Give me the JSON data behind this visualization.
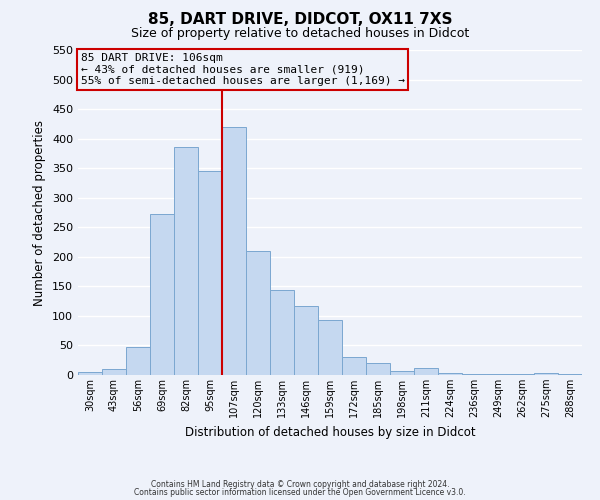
{
  "title": "85, DART DRIVE, DIDCOT, OX11 7XS",
  "subtitle": "Size of property relative to detached houses in Didcot",
  "xlabel": "Distribution of detached houses by size in Didcot",
  "ylabel": "Number of detached properties",
  "bar_labels": [
    "30sqm",
    "43sqm",
    "56sqm",
    "69sqm",
    "82sqm",
    "95sqm",
    "107sqm",
    "120sqm",
    "133sqm",
    "146sqm",
    "159sqm",
    "172sqm",
    "185sqm",
    "198sqm",
    "211sqm",
    "224sqm",
    "236sqm",
    "249sqm",
    "262sqm",
    "275sqm",
    "288sqm"
  ],
  "bar_values": [
    5,
    11,
    48,
    272,
    386,
    345,
    420,
    210,
    144,
    116,
    93,
    30,
    20,
    7,
    12,
    3,
    2,
    1,
    1,
    4,
    2
  ],
  "bar_color": "#c5d8f0",
  "bar_edge_color": "#7ba7d0",
  "ylim": [
    0,
    550
  ],
  "yticks": [
    0,
    50,
    100,
    150,
    200,
    250,
    300,
    350,
    400,
    450,
    500,
    550
  ],
  "vline_x": 5.5,
  "vline_color": "#cc0000",
  "annotation_title": "85 DART DRIVE: 106sqm",
  "annotation_line1": "← 43% of detached houses are smaller (919)",
  "annotation_line2": "55% of semi-detached houses are larger (1,169) →",
  "annotation_box_color": "#cc0000",
  "footer1": "Contains HM Land Registry data © Crown copyright and database right 2024.",
  "footer2": "Contains public sector information licensed under the Open Government Licence v3.0.",
  "background_color": "#eef2fa",
  "grid_color": "#ffffff"
}
